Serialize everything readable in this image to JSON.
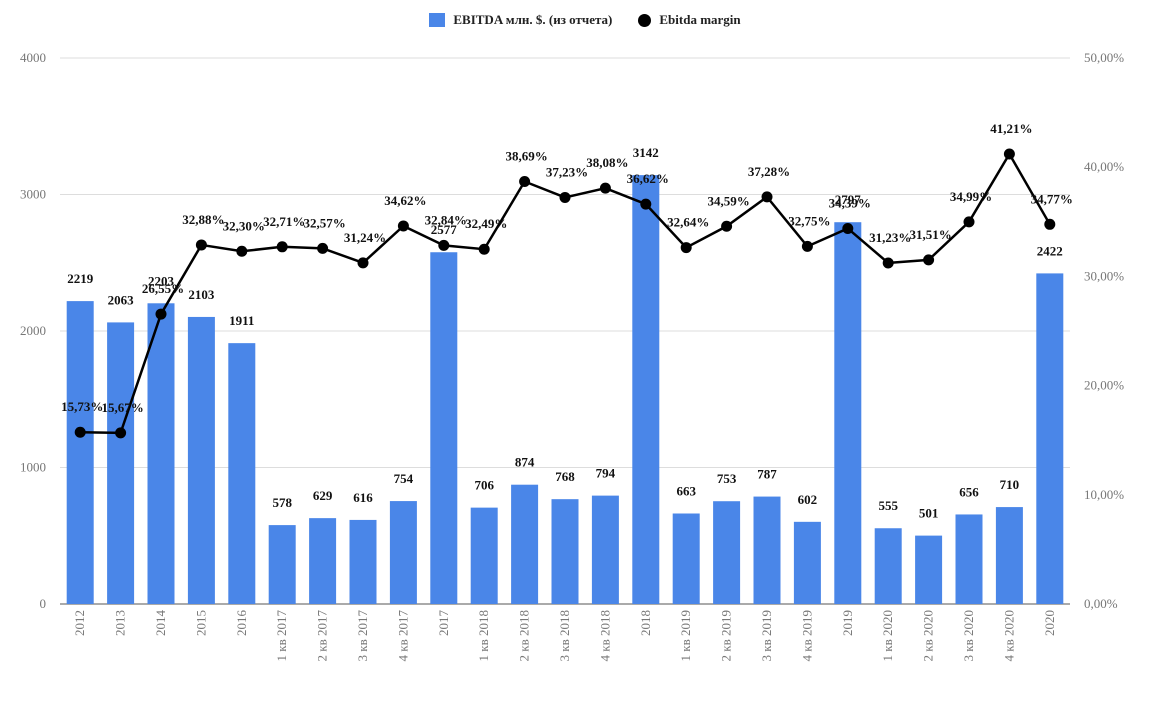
{
  "legend": {
    "bar_series": "EBITDA млн. $. (из отчета)",
    "line_series": "Ebitda margin"
  },
  "colors": {
    "bar": "#4a86e8",
    "line": "#000000",
    "grid": "#dddddd"
  },
  "chart_data": {
    "type": "bar",
    "categories": [
      "2012",
      "2013",
      "2014",
      "2015",
      "2016",
      "1 кв 2017",
      "2 кв 2017",
      "3 кв 2017",
      "4 кв 2017",
      "2017",
      "1 кв 2018",
      "2 кв 2018",
      "3 кв 2018",
      "4 кв 2018",
      "2018",
      "1 кв 2019",
      "2 кв 2019",
      "3 кв 2019",
      "4 кв 2019",
      "2019",
      "1 кв 2020",
      "2 кв 2020",
      "3 кв 2020",
      "4 кв 2020",
      "2020"
    ],
    "series": [
      {
        "name": "EBITDA млн. $. (из отчета)",
        "type": "bar",
        "axis": "left",
        "values": [
          2219,
          2063,
          2203,
          2103,
          1911,
          578,
          629,
          616,
          754,
          2577,
          706,
          874,
          768,
          794,
          3142,
          663,
          753,
          787,
          602,
          2797,
          555,
          501,
          656,
          710,
          2422
        ],
        "labels": [
          "2219",
          "2063",
          "2203",
          "2103",
          "1911",
          "578",
          "629",
          "616",
          "754",
          "2577",
          "706",
          "874",
          "768",
          "794",
          "3142",
          "663",
          "753",
          "787",
          "602",
          "2797",
          "555",
          "501",
          "656",
          "710",
          "2422"
        ]
      },
      {
        "name": "Ebitda margin",
        "type": "line",
        "axis": "right",
        "values": [
          15.73,
          15.67,
          26.55,
          32.88,
          32.3,
          32.71,
          32.57,
          31.24,
          34.62,
          32.84,
          32.49,
          38.69,
          37.23,
          38.08,
          36.62,
          32.64,
          34.59,
          37.28,
          32.75,
          34.39,
          31.23,
          31.51,
          34.99,
          41.21,
          34.77
        ],
        "labels": [
          "15,73%",
          "15,67%",
          "26,55%",
          "32,88%",
          "32,30%",
          "32,71%",
          "32,57%",
          "31,24%",
          "34,62%",
          "32,84%",
          "32,49%",
          "38,69%",
          "37,23%",
          "38,08%",
          "36,62%",
          "32,64%",
          "34,59%",
          "37,28%",
          "32,75%",
          "34,39%",
          "31,23%",
          "31,51%",
          "34,99%",
          "41,21%",
          "34,77%"
        ]
      }
    ],
    "ylim_left": [
      0,
      4000
    ],
    "yticks_left": [
      "0",
      "1000",
      "2000",
      "3000",
      "4000"
    ],
    "ylim_right": [
      0,
      50
    ],
    "yticks_right": [
      "0,00%",
      "10,00%",
      "20,00%",
      "30,00%",
      "40,00%",
      "50,00%"
    ],
    "grid": true,
    "legend_position": "top-center"
  }
}
